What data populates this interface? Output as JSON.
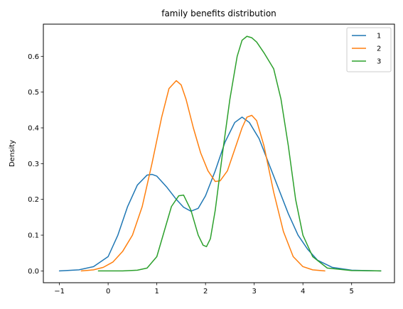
{
  "chart_data": {
    "type": "line",
    "title": "family benefits distribution",
    "xlabel": "",
    "ylabel": "Density",
    "xlim": [
      -1.33,
      5.88
    ],
    "ylim": [
      -0.033,
      0.69
    ],
    "xticks": [
      -1,
      0,
      1,
      2,
      3,
      4,
      5
    ],
    "yticks": [
      0.0,
      0.1,
      0.2,
      0.3,
      0.4,
      0.5,
      0.6
    ],
    "grid": false,
    "legend_position": "top-right",
    "series": [
      {
        "name": "1",
        "color": "#1f77b4",
        "x": [
          -1.0,
          -0.6,
          -0.3,
          0.0,
          0.2,
          0.4,
          0.6,
          0.8,
          0.9,
          1.0,
          1.2,
          1.4,
          1.55,
          1.7,
          1.85,
          2.0,
          2.2,
          2.4,
          2.6,
          2.75,
          2.9,
          3.1,
          3.3,
          3.5,
          3.7,
          3.9,
          4.1,
          4.3,
          4.6,
          5.0,
          5.6
        ],
        "values": [
          0.0,
          0.003,
          0.012,
          0.04,
          0.1,
          0.18,
          0.24,
          0.268,
          0.27,
          0.265,
          0.235,
          0.2,
          0.178,
          0.167,
          0.175,
          0.21,
          0.28,
          0.36,
          0.415,
          0.43,
          0.415,
          0.37,
          0.3,
          0.23,
          0.16,
          0.1,
          0.06,
          0.03,
          0.01,
          0.002,
          0.0
        ]
      },
      {
        "name": "2",
        "color": "#ff7f0e",
        "x": [
          -0.55,
          -0.3,
          -0.1,
          0.1,
          0.3,
          0.5,
          0.7,
          0.9,
          1.1,
          1.25,
          1.4,
          1.5,
          1.6,
          1.75,
          1.9,
          2.05,
          2.2,
          2.3,
          2.45,
          2.6,
          2.75,
          2.85,
          2.95,
          3.05,
          3.2,
          3.4,
          3.6,
          3.8,
          4.0,
          4.2,
          4.45
        ],
        "values": [
          0.0,
          0.003,
          0.01,
          0.025,
          0.055,
          0.1,
          0.18,
          0.3,
          0.43,
          0.51,
          0.532,
          0.52,
          0.48,
          0.4,
          0.33,
          0.28,
          0.25,
          0.252,
          0.28,
          0.34,
          0.4,
          0.43,
          0.435,
          0.42,
          0.35,
          0.22,
          0.11,
          0.04,
          0.012,
          0.003,
          0.0
        ]
      },
      {
        "name": "3",
        "color": "#2ca02c",
        "x": [
          -0.2,
          0.3,
          0.6,
          0.8,
          1.0,
          1.15,
          1.3,
          1.45,
          1.55,
          1.7,
          1.85,
          1.95,
          2.02,
          2.1,
          2.2,
          2.35,
          2.5,
          2.65,
          2.75,
          2.85,
          2.95,
          3.05,
          3.2,
          3.4,
          3.55,
          3.7,
          3.85,
          4.0,
          4.2,
          4.5,
          5.0,
          5.6
        ],
        "values": [
          0.0,
          0.0,
          0.002,
          0.008,
          0.04,
          0.11,
          0.18,
          0.21,
          0.212,
          0.17,
          0.1,
          0.072,
          0.068,
          0.09,
          0.17,
          0.33,
          0.48,
          0.6,
          0.645,
          0.656,
          0.652,
          0.64,
          0.61,
          0.565,
          0.48,
          0.35,
          0.2,
          0.1,
          0.04,
          0.008,
          0.001,
          0.0
        ]
      }
    ]
  }
}
